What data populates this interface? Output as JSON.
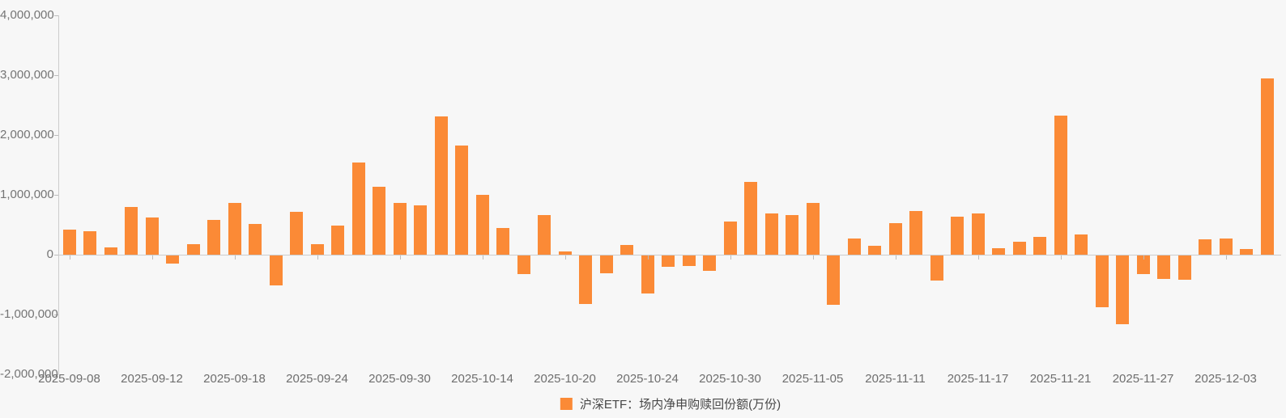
{
  "chart_data": {
    "type": "bar",
    "title": "",
    "xlabel": "",
    "ylabel": "",
    "legend_label": "沪深ETF：场内净申购赎回份额(万份)",
    "legend_position": "bottom-center",
    "grid": false,
    "ylim": [
      -2000000,
      4000000
    ],
    "y_tick_labels": [
      "4,000,000",
      "3,000,000",
      "2,000,000",
      "1,000,000",
      "0",
      "-1,000,000",
      "-2,000,000"
    ],
    "y_tick_values": [
      4000000,
      3000000,
      2000000,
      1000000,
      0,
      -1000000,
      -2000000
    ],
    "x_tick_labels": [
      "2025-09-08",
      "2025-09-12",
      "2025-09-18",
      "2025-09-24",
      "2025-09-30",
      "2025-10-14",
      "2025-10-20",
      "2025-10-24",
      "2025-10-30",
      "2025-11-05",
      "2025-11-11",
      "2025-11-17",
      "2025-11-21",
      "2025-11-27",
      "2025-12-03"
    ],
    "x_tick_every": 4,
    "categories": [
      "2025-09-08",
      "2025-09-09",
      "2025-09-10",
      "2025-09-11",
      "2025-09-12",
      "2025-09-15",
      "2025-09-16",
      "2025-09-17",
      "2025-09-18",
      "2025-09-19",
      "2025-09-22",
      "2025-09-23",
      "2025-09-24",
      "2025-09-25",
      "2025-09-26",
      "2025-09-29",
      "2025-09-30",
      "2025-10-09",
      "2025-10-10",
      "2025-10-13",
      "2025-10-14",
      "2025-10-15",
      "2025-10-16",
      "2025-10-17",
      "2025-10-20",
      "2025-10-21",
      "2025-10-22",
      "2025-10-23",
      "2025-10-24",
      "2025-10-27",
      "2025-10-28",
      "2025-10-29",
      "2025-10-30",
      "2025-10-31",
      "2025-11-03",
      "2025-11-04",
      "2025-11-05",
      "2025-11-06",
      "2025-11-07",
      "2025-11-10",
      "2025-11-11",
      "2025-11-12",
      "2025-11-13",
      "2025-11-14",
      "2025-11-17",
      "2025-11-18",
      "2025-11-19",
      "2025-11-20",
      "2025-11-21",
      "2025-11-24",
      "2025-11-25",
      "2025-11-26",
      "2025-11-27",
      "2025-11-28",
      "2025-12-01",
      "2025-12-02",
      "2025-12-03",
      "2025-12-04",
      "2025-12-05"
    ],
    "values": [
      420000,
      390000,
      125000,
      795000,
      620000,
      -130000,
      180000,
      580000,
      870000,
      520000,
      -500000,
      710000,
      175000,
      485000,
      1540000,
      1130000,
      870000,
      820000,
      2310000,
      1830000,
      1000000,
      450000,
      -315000,
      665000,
      50000,
      -815000,
      -295000,
      165000,
      -630000,
      -190000,
      -170000,
      -250000,
      550000,
      1220000,
      690000,
      660000,
      860000,
      -820000,
      275000,
      150000,
      525000,
      730000,
      -425000,
      635000,
      685000,
      110000,
      210000,
      295000,
      2320000,
      340000,
      -865000,
      -1150000,
      -305000,
      -390000,
      -410000,
      255000,
      275000,
      95000,
      2945000
    ],
    "colors": {
      "bar": "#fb8a36",
      "background": "#f7f7f7",
      "axis": "#cccccc",
      "tick": "#bcbcbc",
      "axis_label": "#757575",
      "legend_text": "#474747"
    }
  }
}
